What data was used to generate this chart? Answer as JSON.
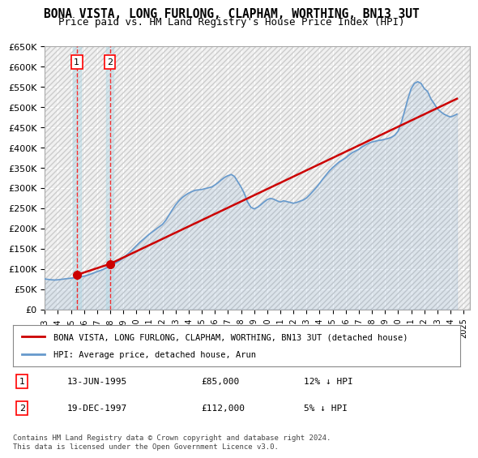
{
  "title": "BONA VISTA, LONG FURLONG, CLAPHAM, WORTHING, BN13 3UT",
  "subtitle": "Price paid vs. HM Land Registry's House Price Index (HPI)",
  "title_fontsize": 11,
  "subtitle_fontsize": 10,
  "background_color": "#ffffff",
  "plot_bg_color": "#f0f0f0",
  "hatch_color": "#d0d0d0",
  "grid_color": "#ffffff",
  "ylim": [
    0,
    650000
  ],
  "yticks": [
    0,
    50000,
    100000,
    150000,
    200000,
    250000,
    300000,
    350000,
    400000,
    450000,
    500000,
    550000,
    600000,
    650000
  ],
  "ytick_labels": [
    "£0",
    "£50K",
    "£100K",
    "£150K",
    "£200K",
    "£250K",
    "£300K",
    "£350K",
    "£400K",
    "£450K",
    "£500K",
    "£550K",
    "£600K",
    "£650K"
  ],
  "xlim_start": 1993.0,
  "xlim_end": 2025.5,
  "xticks": [
    1993,
    1994,
    1995,
    1996,
    1997,
    1998,
    1999,
    2000,
    2001,
    2002,
    2003,
    2004,
    2005,
    2006,
    2007,
    2008,
    2009,
    2010,
    2011,
    2012,
    2013,
    2014,
    2015,
    2016,
    2017,
    2018,
    2019,
    2020,
    2021,
    2022,
    2023,
    2024,
    2025
  ],
  "red_line_color": "#cc0000",
  "blue_line_color": "#6699cc",
  "transaction_line_color": "#ff0000",
  "transactions": [
    {
      "num": 1,
      "date": "13-JUN-1995",
      "price": 85000,
      "x": 1995.45,
      "hpi_text": "12% ↓ HPI"
    },
    {
      "num": 2,
      "date": "19-DEC-1997",
      "price": 112000,
      "x": 1997.97,
      "hpi_text": "5% ↓ HPI"
    }
  ],
  "hpi_data_x": [
    1993.0,
    1993.25,
    1993.5,
    1993.75,
    1994.0,
    1994.25,
    1994.5,
    1994.75,
    1995.0,
    1995.25,
    1995.5,
    1995.75,
    1996.0,
    1996.25,
    1996.5,
    1996.75,
    1997.0,
    1997.25,
    1997.5,
    1997.75,
    1998.0,
    1998.25,
    1998.5,
    1998.75,
    1999.0,
    1999.25,
    1999.5,
    1999.75,
    2000.0,
    2000.25,
    2000.5,
    2000.75,
    2001.0,
    2001.25,
    2001.5,
    2001.75,
    2002.0,
    2002.25,
    2002.5,
    2002.75,
    2003.0,
    2003.25,
    2003.5,
    2003.75,
    2004.0,
    2004.25,
    2004.5,
    2004.75,
    2005.0,
    2005.25,
    2005.5,
    2005.75,
    2006.0,
    2006.25,
    2006.5,
    2006.75,
    2007.0,
    2007.25,
    2007.5,
    2007.75,
    2008.0,
    2008.25,
    2008.5,
    2008.75,
    2009.0,
    2009.25,
    2009.5,
    2009.75,
    2010.0,
    2010.25,
    2010.5,
    2010.75,
    2011.0,
    2011.25,
    2011.5,
    2011.75,
    2012.0,
    2012.25,
    2012.5,
    2012.75,
    2013.0,
    2013.25,
    2013.5,
    2013.75,
    2014.0,
    2014.25,
    2014.5,
    2014.75,
    2015.0,
    2015.25,
    2015.5,
    2015.75,
    2016.0,
    2016.25,
    2016.5,
    2016.75,
    2017.0,
    2017.25,
    2017.5,
    2017.75,
    2018.0,
    2018.25,
    2018.5,
    2018.75,
    2019.0,
    2019.25,
    2019.5,
    2019.75,
    2020.0,
    2020.25,
    2020.5,
    2020.75,
    2021.0,
    2021.25,
    2021.5,
    2021.75,
    2022.0,
    2022.25,
    2022.5,
    2022.75,
    2023.0,
    2023.25,
    2023.5,
    2023.75,
    2024.0,
    2024.25,
    2024.5
  ],
  "hpi_data_y": [
    75000,
    74000,
    73000,
    72500,
    73000,
    74000,
    75000,
    76000,
    77000,
    78000,
    79000,
    80000,
    82000,
    84000,
    87000,
    90000,
    93000,
    96000,
    99000,
    103000,
    107000,
    111000,
    116000,
    121000,
    127000,
    134000,
    141000,
    149000,
    157000,
    165000,
    172000,
    179000,
    186000,
    192000,
    198000,
    204000,
    210000,
    220000,
    233000,
    246000,
    258000,
    268000,
    276000,
    282000,
    287000,
    291000,
    294000,
    295000,
    296000,
    298000,
    300000,
    302000,
    307000,
    313000,
    320000,
    326000,
    330000,
    333000,
    328000,
    315000,
    302000,
    286000,
    265000,
    252000,
    248000,
    252000,
    258000,
    265000,
    271000,
    274000,
    272000,
    268000,
    265000,
    268000,
    266000,
    264000,
    262000,
    264000,
    267000,
    270000,
    275000,
    283000,
    292000,
    301000,
    311000,
    322000,
    332000,
    342000,
    350000,
    357000,
    364000,
    369000,
    374000,
    381000,
    387000,
    391000,
    395000,
    401000,
    406000,
    410000,
    413000,
    415000,
    417000,
    418000,
    420000,
    422000,
    425000,
    430000,
    440000,
    462000,
    490000,
    520000,
    545000,
    558000,
    562000,
    558000,
    545000,
    538000,
    520000,
    508000,
    495000,
    488000,
    482000,
    478000,
    475000,
    478000,
    482000
  ],
  "red_line_x": [
    1995.45,
    1997.97,
    2024.5
  ],
  "red_line_y": [
    85000,
    112000,
    520000
  ],
  "legend_red_label": "BONA VISTA, LONG FURLONG, CLAPHAM, WORTHING, BN13 3UT (detached house)",
  "legend_blue_label": "HPI: Average price, detached house, Arun",
  "footer": "Contains HM Land Registry data © Crown copyright and database right 2024.\nThis data is licensed under the Open Government Licence v3.0."
}
